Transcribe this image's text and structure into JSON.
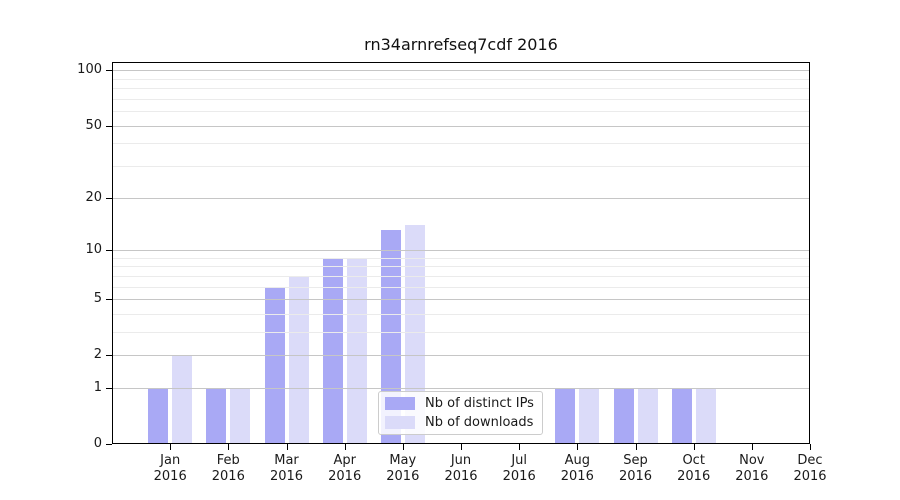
{
  "title": "rn34arnrefseq7cdf 2016",
  "chart_data": {
    "type": "bar",
    "title": "rn34arnrefseq7cdf 2016",
    "categories": [
      "Jan",
      "Feb",
      "Mar",
      "Apr",
      "May",
      "Jun",
      "Jul",
      "Aug",
      "Sep",
      "Oct",
      "Nov",
      "Dec"
    ],
    "category_year": "2016",
    "series": [
      {
        "name": "Nb of distinct IPs",
        "color": "#a9a9f5",
        "values": [
          1,
          1,
          6,
          9,
          13,
          0,
          0,
          1,
          1,
          1,
          0,
          0
        ]
      },
      {
        "name": "Nb of downloads",
        "color": "#dbdbf9",
        "values": [
          2,
          1,
          7,
          9,
          14,
          0,
          0,
          1,
          1,
          1,
          0,
          0
        ]
      }
    ],
    "y_axis": {
      "scale": "log1p",
      "ticks": [
        0,
        1,
        2,
        5,
        10,
        20,
        50,
        100
      ],
      "minor_ticks": [
        3,
        4,
        6,
        7,
        8,
        9,
        30,
        40,
        60,
        70,
        80,
        90
      ],
      "ylim": [
        0,
        110
      ]
    },
    "xlabel": "",
    "ylabel": "",
    "grid": "horizontal",
    "legend_position": "inside-bottom-right"
  }
}
